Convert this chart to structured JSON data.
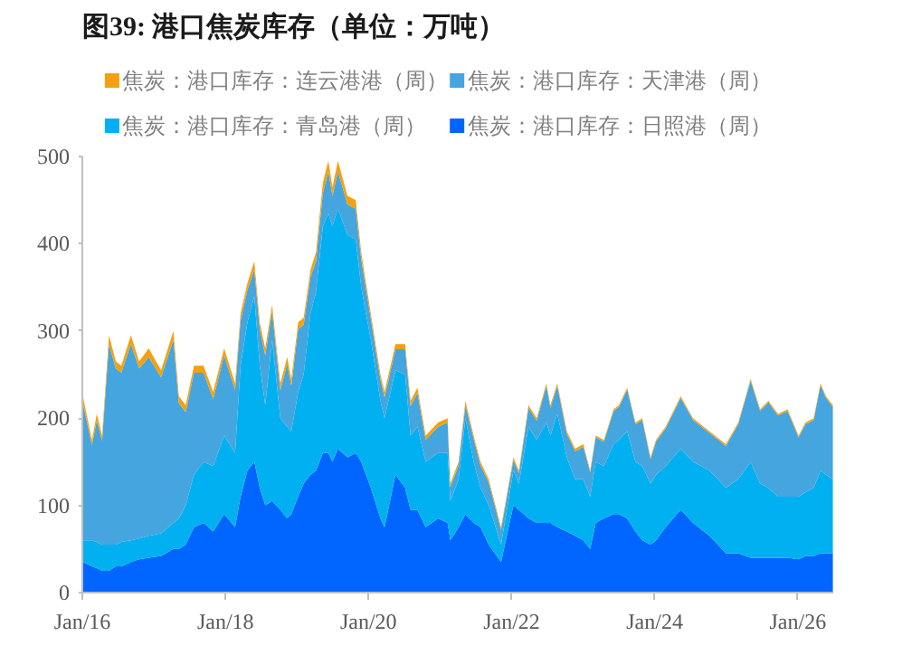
{
  "chart_data": {
    "type": "area",
    "stacked": true,
    "title": "图39: 港口焦炭库存（单位：万吨）",
    "x": [
      "2016-01-04",
      "2016-02-19",
      "2016-03-15",
      "2016-04-11",
      "2016-05-16",
      "2016-06-20",
      "2016-07-18",
      "2016-09-05",
      "2016-10-17",
      "2016-12-05",
      "2017-02-06",
      "2017-04-10",
      "2017-05-08",
      "2017-06-12",
      "2017-07-24",
      "2017-09-11",
      "2017-10-30",
      "2017-12-25",
      "2018-02-19",
      "2018-03-19",
      "2018-04-23",
      "2018-05-28",
      "2018-06-25",
      "2018-07-23",
      "2018-08-27",
      "2018-10-08",
      "2018-11-12",
      "2018-12-03",
      "2019-01-07",
      "2019-02-04",
      "2019-03-11",
      "2019-04-08",
      "2019-05-13",
      "2019-06-10",
      "2019-07-01",
      "2019-07-29",
      "2019-09-16",
      "2019-10-28",
      "2019-11-25",
      "2020-01-13",
      "2020-03-02",
      "2020-03-23",
      "2020-05-18",
      "2020-07-06",
      "2020-08-03",
      "2020-09-07",
      "2020-10-19",
      "2020-12-21",
      "2021-02-08",
      "2021-02-22",
      "2021-04-05",
      "2021-05-10",
      "2021-06-21",
      "2021-07-26",
      "2021-09-06",
      "2021-11-08",
      "2022-01-10",
      "2022-02-07",
      "2022-03-28",
      "2022-05-09",
      "2022-06-27",
      "2022-07-18",
      "2022-08-22",
      "2022-10-10",
      "2022-11-21",
      "2023-01-02",
      "2023-02-06",
      "2023-03-06",
      "2023-04-17",
      "2023-06-05",
      "2023-07-03",
      "2023-08-14",
      "2023-09-25",
      "2023-10-30",
      "2023-12-11",
      "2024-01-08",
      "2024-02-26",
      "2024-05-13",
      "2024-07-15",
      "2024-10-07",
      "2024-12-30",
      "2025-03-03",
      "2025-05-05",
      "2025-06-23",
      "2025-08-04",
      "2025-09-22",
      "2025-11-10",
      "2026-01-05",
      "2026-02-09",
      "2026-03-23",
      "2026-04-27",
      "2026-05-25",
      "2026-06-29"
    ],
    "series": [
      {
        "name": "焦炭：港口库存：日照港（周）",
        "color": "#0066ff",
        "values": [
          35,
          30,
          28,
          25,
          25,
          30,
          30,
          35,
          38,
          40,
          42,
          50,
          50,
          55,
          75,
          80,
          70,
          90,
          75,
          110,
          140,
          150,
          120,
          100,
          105,
          95,
          85,
          90,
          110,
          125,
          135,
          140,
          160,
          160,
          150,
          165,
          155,
          160,
          150,
          120,
          85,
          75,
          135,
          120,
          95,
          95,
          75,
          85,
          80,
          60,
          75,
          90,
          80,
          75,
          55,
          35,
          100,
          95,
          85,
          80,
          80,
          80,
          75,
          70,
          65,
          60,
          50,
          80,
          85,
          90,
          90,
          85,
          70,
          60,
          55,
          60,
          75,
          95,
          80,
          65,
          45,
          45,
          40,
          40,
          40,
          40,
          40,
          38,
          42,
          42,
          45,
          45,
          45
        ]
      },
      {
        "name": "焦炭：港口库存：青岛港（周）",
        "color": "#00b0f0",
        "values": [
          25,
          30,
          30,
          30,
          30,
          25,
          28,
          25,
          24,
          25,
          26,
          30,
          35,
          45,
          60,
          70,
          75,
          90,
          85,
          150,
          170,
          190,
          140,
          115,
          185,
          105,
          105,
          95,
          120,
          125,
          185,
          205,
          260,
          275,
          270,
          275,
          255,
          245,
          200,
          170,
          135,
          125,
          120,
          130,
          85,
          95,
          75,
          75,
          80,
          45,
          55,
          110,
          70,
          45,
          45,
          20,
          40,
          30,
          105,
          95,
          115,
          100,
          130,
          85,
          65,
          70,
          60,
          70,
          60,
          80,
          85,
          100,
          80,
          85,
          70,
          75,
          70,
          70,
          70,
          75,
          75,
          85,
          110,
          85,
          80,
          70,
          70,
          72,
          73,
          78,
          95,
          90,
          85
        ]
      },
      {
        "name": "焦炭：港口库存：天津港（周）",
        "color": "#45a5df",
        "values": [
          157,
          109,
          139,
          119,
          230,
          202,
          194,
          225,
          195,
          205,
          179,
          210,
          132,
          107,
          117,
          102,
          77,
          92,
          72,
          52,
          37,
          30,
          42,
          57,
          32,
          32,
          72,
          52,
          72,
          57,
          42,
          35,
          38,
          48,
          35,
          43,
          35,
          35,
          32,
          24,
          24,
          24,
          24,
          29,
          34,
          39,
          25,
          30,
          35,
          16,
          16,
          15,
          26,
          26,
          26,
          17,
          12,
          12,
          22,
          22,
          42,
          32,
          32,
          27,
          32,
          37,
          28,
          28,
          28,
          38,
          38,
          48,
          43,
          53,
          28,
          38,
          43,
          58,
          48,
          43,
          48,
          63,
          93,
          83,
          98,
          93,
          98,
          68,
          78,
          78,
          98,
          88,
          83
        ]
      },
      {
        "name": "焦炭：港口库存：连云港港（周）",
        "color": "#f5a00f",
        "values": [
          8,
          6,
          8,
          6,
          10,
          8,
          8,
          10,
          8,
          10,
          8,
          10,
          8,
          8,
          8,
          8,
          8,
          8,
          8,
          8,
          8,
          10,
          8,
          8,
          8,
          8,
          8,
          8,
          8,
          8,
          8,
          10,
          12,
          12,
          10,
          12,
          10,
          10,
          8,
          6,
          6,
          6,
          6,
          6,
          6,
          6,
          5,
          5,
          5,
          4,
          4,
          5,
          4,
          4,
          4,
          3,
          3,
          3,
          3,
          3,
          3,
          3,
          3,
          3,
          3,
          3,
          2,
          2,
          2,
          2,
          2,
          2,
          2,
          2,
          2,
          2,
          2,
          2,
          2,
          2,
          2,
          2,
          2,
          2,
          2,
          2,
          2,
          2,
          2,
          2,
          2,
          2,
          2
        ]
      }
    ],
    "xlim": [
      "2016-01-01",
      "2026-07-01"
    ],
    "xticks": [
      {
        "value": "2016-01-01",
        "label": "Jan/16"
      },
      {
        "value": "2018-01-01",
        "label": "Jan/18"
      },
      {
        "value": "2020-01-01",
        "label": "Jan/20"
      },
      {
        "value": "2022-01-01",
        "label": "Jan/22"
      },
      {
        "value": "2024-01-01",
        "label": "Jan/24"
      },
      {
        "value": "2026-01-01",
        "label": "Jan/26"
      }
    ],
    "ylim": [
      0,
      500
    ],
    "yticks": [
      0,
      100,
      200,
      300,
      400,
      500
    ],
    "grid": false,
    "legend": "top"
  }
}
